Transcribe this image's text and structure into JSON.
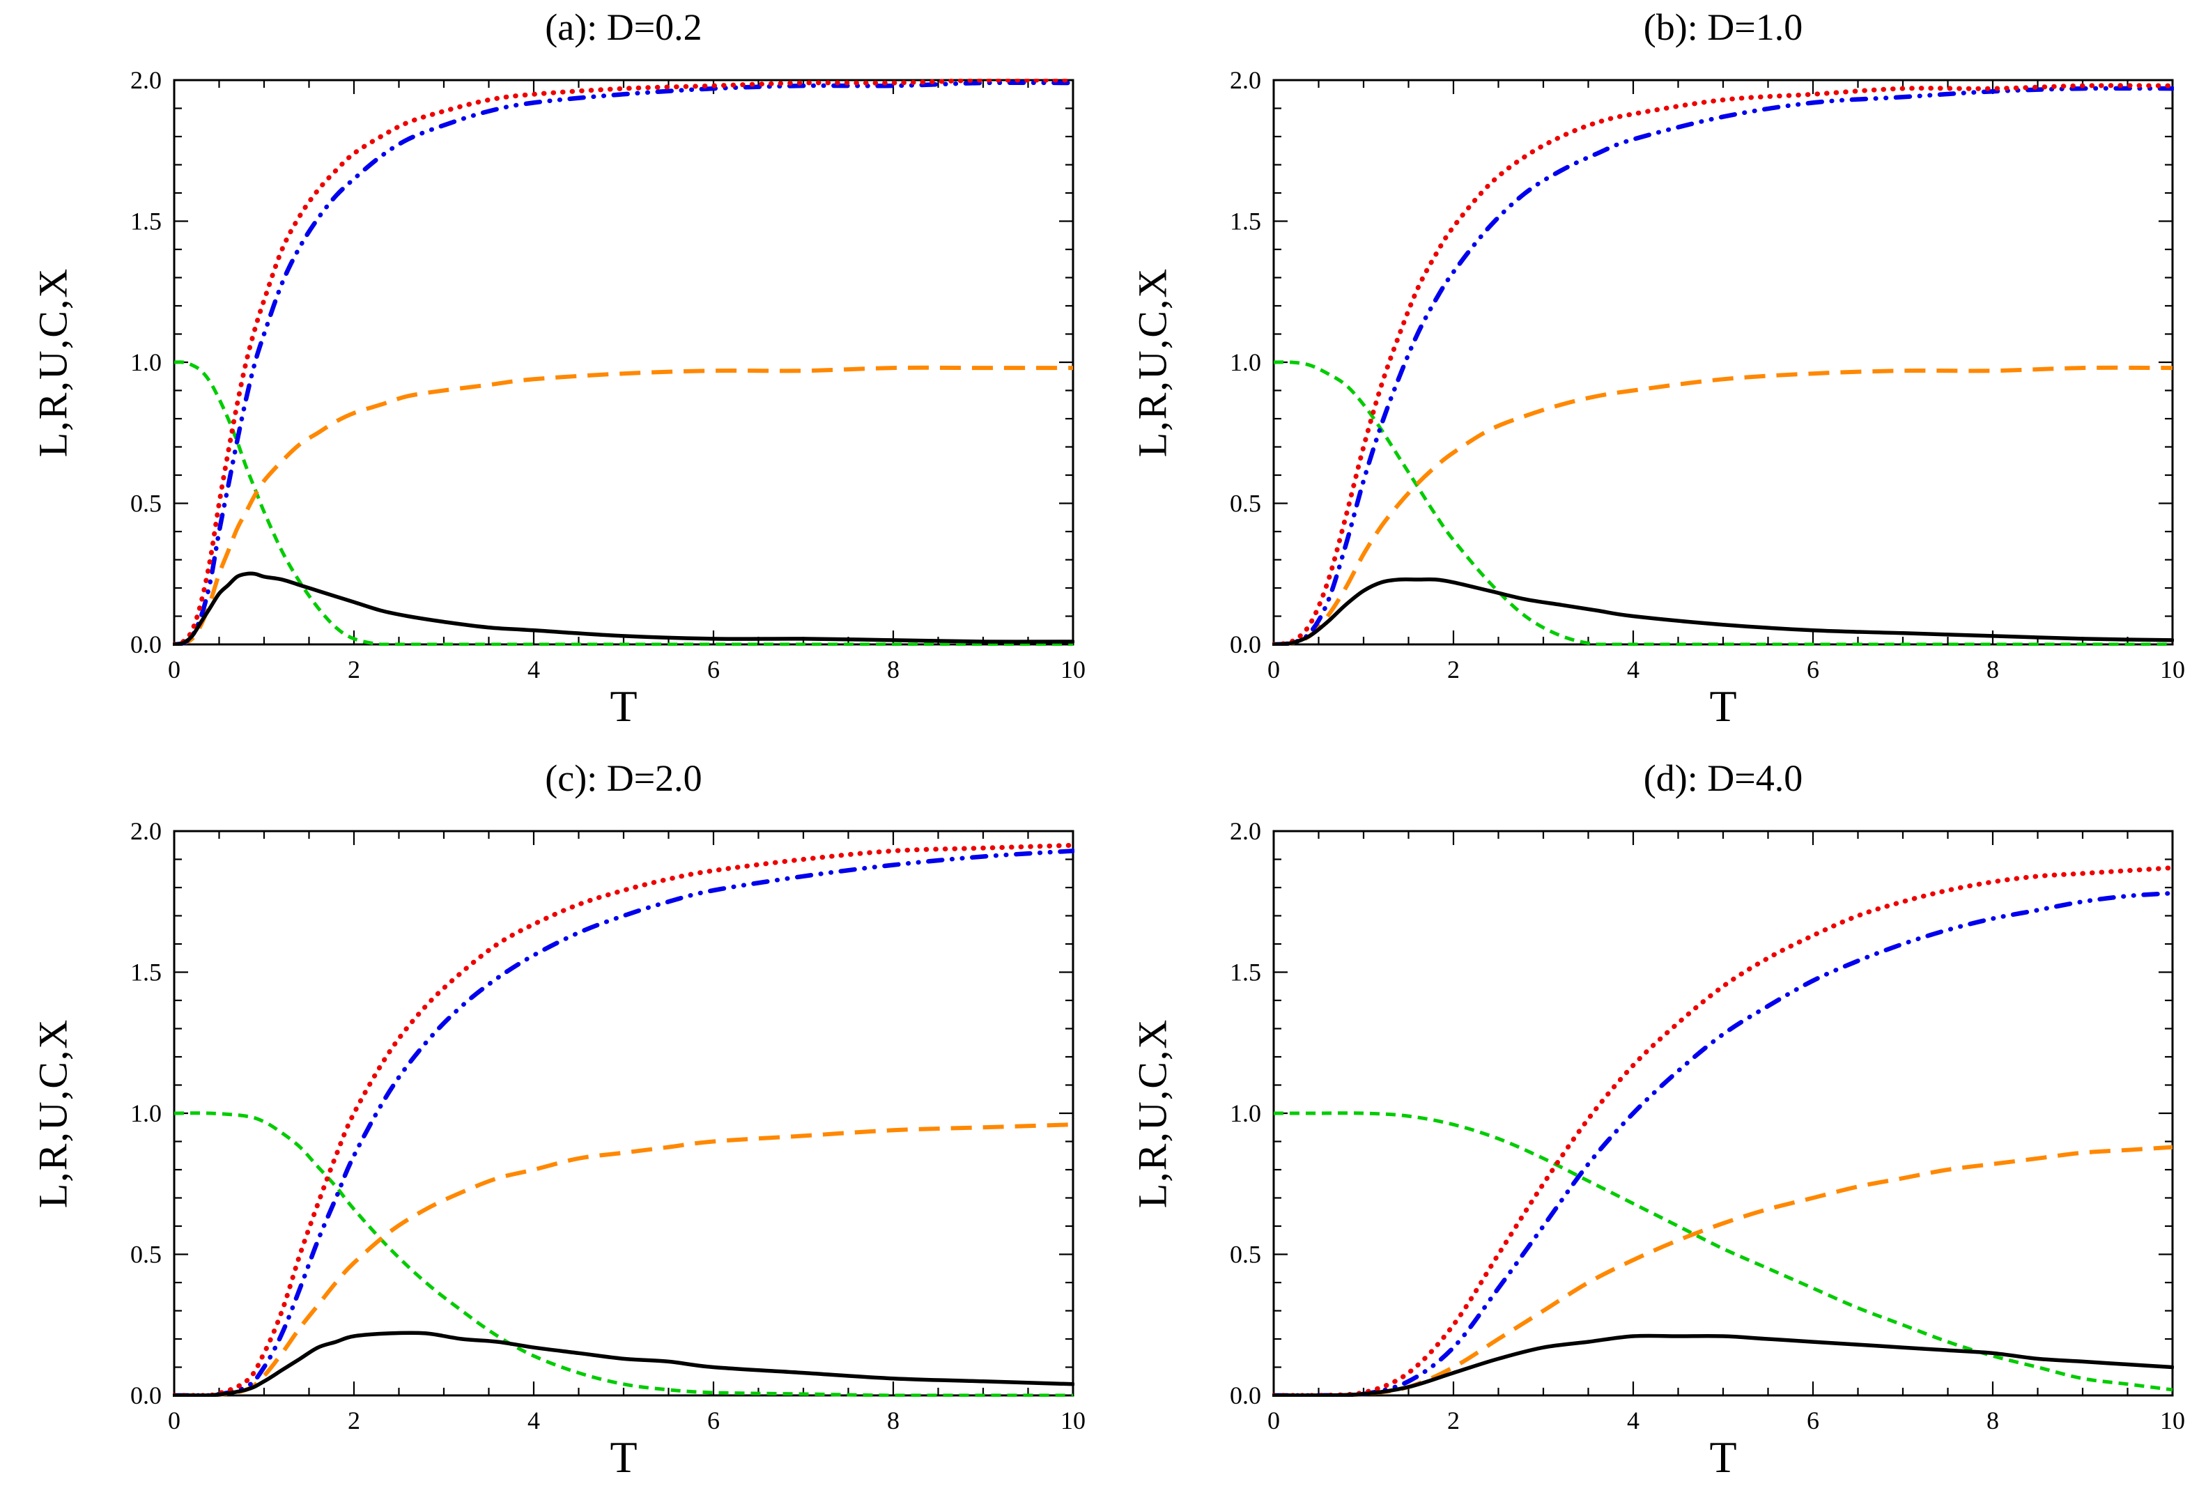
{
  "page": {
    "background": "#ffffff"
  },
  "chart_data": {
    "type": "line",
    "layout": {
      "rows": 2,
      "cols": 2,
      "grid": false,
      "legend": "none",
      "frame": true
    },
    "axes": {
      "xlabel": "T",
      "ylabel": "L,R,U,C,X",
      "xlim": [
        0,
        10
      ],
      "ylim": [
        0,
        2
      ],
      "xticks": [
        0,
        2,
        4,
        6,
        8,
        10
      ],
      "xtick_labels": [
        "0",
        "2",
        "4",
        "6",
        "8",
        "10"
      ],
      "yticks": [
        0,
        0.5,
        1,
        1.5,
        2
      ],
      "ytick_labels": [
        "0.0",
        "0.5",
        "1.0",
        "1.5",
        "2.0"
      ],
      "x_minor_step": 0.5,
      "y_minor_step": 0.1
    },
    "styles": [
      {
        "key": "green-short-dash",
        "color": "#00cc00",
        "dash": "short-dash",
        "width": 5
      },
      {
        "key": "orange-long-dash",
        "color": "#ff8800",
        "dash": "long-dash",
        "width": 6
      },
      {
        "key": "blue-dash-dot",
        "color": "#0000ee",
        "dash": "dash-dot-dot",
        "width": 6.5
      },
      {
        "key": "red-dotted",
        "color": "#ee0000",
        "dash": "dotted",
        "width": 7
      },
      {
        "key": "black-solid",
        "color": "#000000",
        "dash": "solid",
        "width": 5.5
      }
    ],
    "panels": [
      {
        "id": "a",
        "title": "(a): D=0.2",
        "D": 0.2,
        "x": [
          0,
          0.1,
          0.2,
          0.3,
          0.4,
          0.5,
          0.6,
          0.7,
          0.8,
          0.9,
          1,
          1.2,
          1.4,
          1.6,
          1.8,
          2,
          2.3,
          2.6,
          3,
          3.5,
          4,
          5,
          6,
          7,
          8,
          9,
          10
        ],
        "series": {
          "red-dotted": [
            0,
            0.01,
            0.05,
            0.15,
            0.3,
            0.5,
            0.68,
            0.85,
            1,
            1.12,
            1.22,
            1.4,
            1.52,
            1.61,
            1.68,
            1.74,
            1.8,
            1.85,
            1.89,
            1.93,
            1.95,
            1.97,
            1.98,
            1.99,
            1.99,
            2,
            2
          ],
          "blue-dash-dot": [
            0,
            0.005,
            0.03,
            0.1,
            0.22,
            0.4,
            0.56,
            0.72,
            0.87,
            1,
            1.1,
            1.28,
            1.41,
            1.51,
            1.59,
            1.65,
            1.73,
            1.79,
            1.84,
            1.89,
            1.92,
            1.95,
            1.97,
            1.98,
            1.98,
            1.99,
            1.99
          ],
          "orange-long-dash": [
            0,
            0.005,
            0.02,
            0.07,
            0.15,
            0.25,
            0.33,
            0.41,
            0.47,
            0.53,
            0.58,
            0.65,
            0.71,
            0.75,
            0.79,
            0.82,
            0.85,
            0.88,
            0.9,
            0.92,
            0.94,
            0.96,
            0.97,
            0.97,
            0.98,
            0.98,
            0.98
          ],
          "green-short-dash": [
            1,
            1,
            0.99,
            0.97,
            0.93,
            0.87,
            0.8,
            0.72,
            0.63,
            0.55,
            0.47,
            0.33,
            0.22,
            0.13,
            0.06,
            0.02,
            0,
            0,
            0,
            0,
            0,
            0,
            0,
            0,
            0,
            0,
            0
          ],
          "black-solid": [
            0,
            0.005,
            0.03,
            0.08,
            0.13,
            0.18,
            0.21,
            0.24,
            0.25,
            0.25,
            0.24,
            0.23,
            0.21,
            0.19,
            0.17,
            0.15,
            0.12,
            0.1,
            0.08,
            0.06,
            0.05,
            0.03,
            0.02,
            0.02,
            0.015,
            0.01,
            0.01
          ]
        }
      },
      {
        "id": "b",
        "title": "(b): D=1.0",
        "D": 1.0,
        "x": [
          0,
          0.2,
          0.4,
          0.6,
          0.8,
          1,
          1.2,
          1.4,
          1.6,
          1.8,
          2,
          2.4,
          2.8,
          3.2,
          3.6,
          4,
          5,
          6,
          7,
          8,
          9,
          10
        ],
        "series": {
          "red-dotted": [
            0,
            0.01,
            0.07,
            0.22,
            0.45,
            0.7,
            0.92,
            1.1,
            1.26,
            1.38,
            1.48,
            1.63,
            1.73,
            1.8,
            1.85,
            1.88,
            1.93,
            1.95,
            1.97,
            1.97,
            1.98,
            1.98
          ],
          "blue-dash-dot": [
            0,
            0.005,
            0.04,
            0.15,
            0.35,
            0.58,
            0.78,
            0.95,
            1.1,
            1.22,
            1.32,
            1.48,
            1.6,
            1.68,
            1.74,
            1.79,
            1.87,
            1.92,
            1.94,
            1.96,
            1.97,
            1.97
          ],
          "orange-long-dash": [
            0,
            0.005,
            0.03,
            0.1,
            0.2,
            0.32,
            0.42,
            0.5,
            0.57,
            0.63,
            0.68,
            0.76,
            0.81,
            0.85,
            0.88,
            0.9,
            0.94,
            0.96,
            0.97,
            0.97,
            0.98,
            0.98
          ],
          "green-short-dash": [
            1,
            1,
            0.99,
            0.96,
            0.92,
            0.85,
            0.76,
            0.66,
            0.56,
            0.46,
            0.37,
            0.22,
            0.1,
            0.03,
            0,
            0,
            0,
            0,
            0,
            0,
            0,
            0
          ],
          "black-solid": [
            0,
            0.005,
            0.03,
            0.08,
            0.14,
            0.19,
            0.22,
            0.23,
            0.23,
            0.23,
            0.22,
            0.19,
            0.16,
            0.14,
            0.12,
            0.1,
            0.07,
            0.05,
            0.04,
            0.03,
            0.02,
            0.015
          ]
        }
      },
      {
        "id": "c",
        "title": "(c): D=2.0",
        "D": 2.0,
        "x": [
          0,
          0.4,
          0.8,
          1,
          1.2,
          1.4,
          1.6,
          1.8,
          2,
          2.4,
          2.8,
          3.2,
          3.6,
          4,
          4.5,
          5,
          5.5,
          6,
          7,
          8,
          9,
          10
        ],
        "series": {
          "red-dotted": [
            0,
            0,
            0.05,
            0.15,
            0.3,
            0.5,
            0.68,
            0.85,
            1,
            1.22,
            1.38,
            1.5,
            1.6,
            1.67,
            1.74,
            1.79,
            1.83,
            1.86,
            1.9,
            1.93,
            1.94,
            1.95
          ],
          "blue-dash-dot": [
            0,
            0,
            0.03,
            0.1,
            0.22,
            0.38,
            0.55,
            0.7,
            0.85,
            1.08,
            1.25,
            1.38,
            1.48,
            1.56,
            1.64,
            1.7,
            1.75,
            1.79,
            1.84,
            1.88,
            1.91,
            1.93
          ],
          "orange-long-dash": [
            0,
            0,
            0.02,
            0.07,
            0.15,
            0.24,
            0.32,
            0.4,
            0.47,
            0.58,
            0.66,
            0.72,
            0.77,
            0.8,
            0.84,
            0.86,
            0.88,
            0.9,
            0.92,
            0.94,
            0.95,
            0.96
          ],
          "green-short-dash": [
            1,
            1,
            0.99,
            0.97,
            0.93,
            0.88,
            0.81,
            0.74,
            0.66,
            0.52,
            0.4,
            0.3,
            0.21,
            0.14,
            0.08,
            0.04,
            0.02,
            0.01,
            0.005,
            0,
            0,
            0
          ],
          "black-solid": [
            0,
            0,
            0.02,
            0.05,
            0.09,
            0.13,
            0.17,
            0.19,
            0.21,
            0.22,
            0.22,
            0.2,
            0.19,
            0.17,
            0.15,
            0.13,
            0.12,
            0.1,
            0.08,
            0.06,
            0.05,
            0.04
          ]
        }
      },
      {
        "id": "d",
        "title": "(d): D=4.0",
        "D": 4.0,
        "x": [
          0,
          0.5,
          1,
          1.5,
          2,
          2.5,
          3,
          3.5,
          4,
          4.5,
          5,
          5.5,
          6,
          6.5,
          7,
          7.5,
          8,
          8.5,
          9,
          9.5,
          10
        ],
        "series": {
          "red-dotted": [
            0,
            0,
            0.01,
            0.08,
            0.25,
            0.5,
            0.75,
            0.98,
            1.17,
            1.32,
            1.45,
            1.55,
            1.63,
            1.7,
            1.75,
            1.79,
            1.82,
            1.84,
            1.85,
            1.86,
            1.87
          ],
          "blue-dash-dot": [
            0,
            0,
            0.005,
            0.05,
            0.17,
            0.38,
            0.6,
            0.82,
            1,
            1.15,
            1.28,
            1.38,
            1.47,
            1.54,
            1.6,
            1.65,
            1.69,
            1.72,
            1.75,
            1.77,
            1.78
          ],
          "orange-long-dash": [
            0,
            0,
            0.005,
            0.03,
            0.1,
            0.2,
            0.3,
            0.4,
            0.48,
            0.55,
            0.61,
            0.66,
            0.7,
            0.74,
            0.77,
            0.8,
            0.82,
            0.84,
            0.86,
            0.87,
            0.88
          ],
          "green-short-dash": [
            1,
            1,
            1,
            0.99,
            0.96,
            0.91,
            0.84,
            0.76,
            0.68,
            0.6,
            0.52,
            0.45,
            0.38,
            0.31,
            0.25,
            0.19,
            0.14,
            0.1,
            0.06,
            0.04,
            0.02
          ],
          "black-solid": [
            0,
            0,
            0.005,
            0.03,
            0.08,
            0.13,
            0.17,
            0.19,
            0.21,
            0.21,
            0.21,
            0.2,
            0.19,
            0.18,
            0.17,
            0.16,
            0.15,
            0.13,
            0.12,
            0.11,
            0.1
          ]
        }
      }
    ]
  }
}
